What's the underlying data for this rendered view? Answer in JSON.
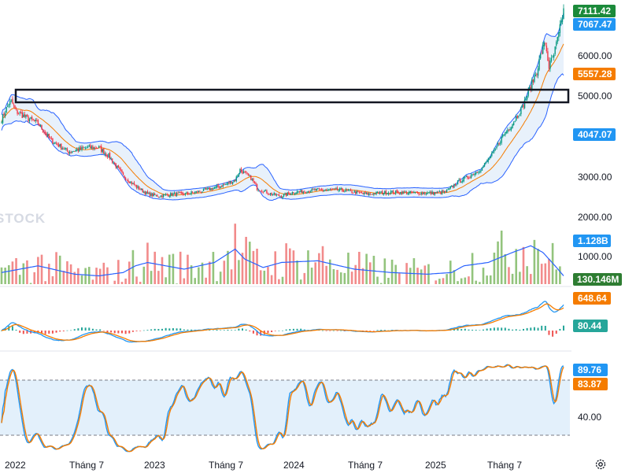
{
  "watermark": "STOCK",
  "price_axis": {
    "ticks": [
      "6000.00",
      "5000.00",
      "3000.00"
    ]
  },
  "volume_axis": {
    "ticks": [
      "2000.00",
      "1000.00"
    ]
  },
  "macd_axis": {
    "ticks": []
  },
  "stoch_axis": {
    "ticks": [
      "40.00"
    ]
  },
  "x_axis": {
    "labels": [
      "2022",
      "Tháng 7",
      "2023",
      "Tháng 7",
      "2024",
      "Tháng 7",
      "2025",
      "Tháng 7"
    ]
  },
  "tags": {
    "last_price": "7111.42",
    "bb_upper": "7067.47",
    "bb_basis": "5557.28",
    "bb_lower": "4047.07",
    "vol_ma": "1.128B",
    "volume": "130.146M",
    "macd": "648.64",
    "macd_hist": "80.44",
    "stoch_k": "89.76",
    "stoch_d": "83.87"
  },
  "colors": {
    "up": "#089981",
    "down": "#f23645",
    "vol_up": "#93c47d",
    "vol_down": "#f28b8b",
    "bollinger": "#2962ff",
    "bb_fill": "#e8f1fb",
    "basis": "#f57c00",
    "macd_line": "#2196f3",
    "signal_line": "#f57c00",
    "stoch_k": "#2196f3",
    "stoch_d": "#f57c00",
    "last_price_tag": "#1b8a3a",
    "vol_tag": "#2e7d32"
  },
  "chart_data": {
    "type": "candlestick",
    "x_labels": [
      "2022",
      "Tháng 7",
      "2023",
      "Tháng 7",
      "2024",
      "Tháng 7",
      "2025",
      "Tháng 7"
    ],
    "close_anchors": [
      [
        0,
        4400
      ],
      [
        6,
        4800
      ],
      [
        8,
        4850
      ],
      [
        12,
        4600
      ],
      [
        20,
        4450
      ],
      [
        30,
        4300
      ],
      [
        40,
        3900
      ],
      [
        55,
        3600
      ],
      [
        70,
        3700
      ],
      [
        80,
        3700
      ],
      [
        88,
        3500
      ],
      [
        100,
        3000
      ],
      [
        110,
        2750
      ],
      [
        120,
        2550
      ],
      [
        130,
        2500
      ],
      [
        140,
        2550
      ],
      [
        150,
        2550
      ],
      [
        160,
        2600
      ],
      [
        175,
        2700
      ],
      [
        185,
        2800
      ],
      [
        192,
        2900
      ],
      [
        196,
        3150
      ],
      [
        205,
        2950
      ],
      [
        210,
        2700
      ],
      [
        222,
        2550
      ],
      [
        230,
        2500
      ],
      [
        240,
        2600
      ],
      [
        260,
        2650
      ],
      [
        280,
        2650
      ],
      [
        300,
        2550
      ],
      [
        320,
        2600
      ],
      [
        340,
        2580
      ],
      [
        355,
        2580
      ],
      [
        365,
        2600
      ],
      [
        375,
        2850
      ],
      [
        385,
        3000
      ],
      [
        395,
        3200
      ],
      [
        405,
        3600
      ],
      [
        412,
        4000
      ],
      [
        420,
        4300
      ],
      [
        428,
        4700
      ],
      [
        432,
        5000
      ],
      [
        436,
        5300
      ],
      [
        440,
        5600
      ],
      [
        444,
        6100
      ],
      [
        447,
        6300
      ],
      [
        450,
        5700
      ],
      [
        454,
        6000
      ],
      [
        458,
        6500
      ],
      [
        462,
        7100
      ]
    ],
    "volume_anchors": [
      [
        0,
        700
      ],
      [
        15,
        800
      ],
      [
        30,
        900
      ],
      [
        60,
        650
      ],
      [
        80,
        600
      ],
      [
        100,
        700
      ],
      [
        110,
        900
      ],
      [
        120,
        1000
      ],
      [
        150,
        800
      ],
      [
        175,
        1000
      ],
      [
        192,
        1400
      ],
      [
        200,
        1100
      ],
      [
        215,
        850
      ],
      [
        230,
        1000
      ],
      [
        260,
        1050
      ],
      [
        290,
        800
      ],
      [
        320,
        700
      ],
      [
        350,
        650
      ],
      [
        370,
        700
      ],
      [
        380,
        900
      ],
      [
        400,
        1000
      ],
      [
        420,
        1300
      ],
      [
        435,
        1500
      ],
      [
        445,
        1300
      ],
      [
        455,
        900
      ],
      [
        462,
        600
      ]
    ],
    "price_range": [
      1900,
      7300
    ],
    "volume_range": [
      0,
      2300
    ],
    "stoch_range": [
      0,
      100
    ],
    "stoch_levels": [
      20,
      80
    ],
    "series": [
      {
        "name": "Bollinger Bands (20, 2)",
        "values": []
      },
      {
        "name": "MACD",
        "values": []
      },
      {
        "name": "Stochastic",
        "values": []
      }
    ]
  }
}
